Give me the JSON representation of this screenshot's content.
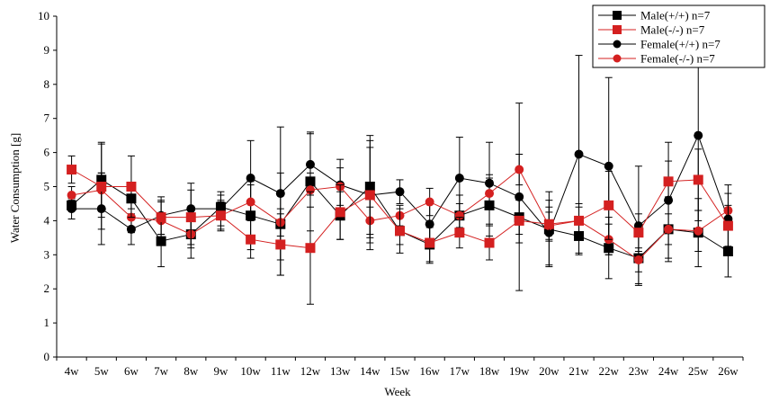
{
  "chart_data": {
    "type": "line",
    "xlabel": "Week",
    "ylabel": "Water Consumption [g]",
    "ylim": [
      0,
      10
    ],
    "y_ticks": [
      "0",
      "1",
      "2",
      "3",
      "4",
      "5",
      "6",
      "7",
      "8",
      "9",
      "10"
    ],
    "categories": [
      "4w",
      "5w",
      "6w",
      "7w",
      "8w",
      "9w",
      "10w",
      "11w",
      "12w",
      "13w",
      "14w",
      "15w",
      "16w",
      "17w",
      "18w",
      "19w",
      "20w",
      "21w",
      "22w",
      "23w",
      "24w",
      "25w",
      "26w"
    ],
    "legend_position": "top-right",
    "series": [
      {
        "name": "Male(+/+)",
        "n_label": "n=7",
        "color": "#000000",
        "marker": "square",
        "values": [
          4.45,
          5.2,
          4.65,
          3.4,
          3.6,
          4.4,
          4.15,
          3.9,
          5.15,
          4.15,
          5.0,
          3.7,
          3.3,
          4.15,
          4.45,
          4.1,
          3.75,
          3.55,
          3.2,
          2.9,
          3.75,
          3.65,
          3.1
        ],
        "errors": [
          0.15,
          1.1,
          0.3,
          0.75,
          0.7,
          0.35,
          1.0,
          1.5,
          1.45,
          0.7,
          1.5,
          0.4,
          0.5,
          0.6,
          0.9,
          0.5,
          1.1,
          0.55,
          0.9,
          0.75,
          0.95,
          1.0,
          0.75
        ]
      },
      {
        "name": "Male(-/-)",
        "n_label": "n=7",
        "color": "#d42020",
        "marker": "square",
        "values": [
          5.5,
          5.0,
          5.0,
          4.1,
          4.1,
          4.15,
          3.45,
          3.3,
          3.2,
          4.25,
          4.75,
          3.7,
          3.35,
          3.65,
          3.35,
          4.0,
          3.9,
          4.0,
          4.45,
          3.65,
          5.15,
          5.2,
          3.85
        ],
        "errors": [
          0.4,
          1.25,
          0.9,
          0.5,
          0.8,
          0.4,
          0.55,
          0.9,
          1.65,
          0.8,
          1.6,
          0.65,
          0.6,
          0.45,
          0.5,
          0.65,
          0.5,
          0.5,
          1.0,
          0.55,
          0.6,
          0.9,
          0.6
        ]
      },
      {
        "name": "Female(+/+)",
        "n_label": "n=7",
        "color": "#000000",
        "marker": "circle",
        "values": [
          4.35,
          4.35,
          3.75,
          4.15,
          4.35,
          4.35,
          5.25,
          4.8,
          5.65,
          5.05,
          4.75,
          4.85,
          3.9,
          5.25,
          5.1,
          4.7,
          3.65,
          5.95,
          5.6,
          3.85,
          4.6,
          6.5,
          4.05
        ],
        "errors": [
          0.3,
          1.05,
          0.45,
          0.55,
          0.75,
          0.5,
          1.1,
          1.95,
          0.9,
          0.75,
          1.4,
          0.35,
          0.65,
          1.2,
          1.2,
          2.75,
          0.95,
          2.9,
          2.6,
          1.75,
          1.7,
          2.5,
          1.0
        ]
      },
      {
        "name": "Female(-/-)",
        "n_label": "n=7",
        "color": "#d42020",
        "marker": "circle",
        "values": [
          4.75,
          4.9,
          4.1,
          4.0,
          3.6,
          4.15,
          4.55,
          3.95,
          4.9,
          5.0,
          4.0,
          4.15,
          4.55,
          4.15,
          4.8,
          5.5,
          3.85,
          4.0,
          3.45,
          2.85,
          3.75,
          3.7,
          4.3
        ],
        "errors": [
          0.25,
          0.5,
          0.45,
          0.55,
          0.4,
          0.45,
          0.5,
          0.4,
          0.5,
          0.55,
          0.4,
          0.3,
          0.4,
          0.35,
          0.45,
          0.45,
          0.4,
          0.4,
          0.45,
          0.35,
          0.45,
          0.6,
          0.5
        ]
      }
    ]
  }
}
